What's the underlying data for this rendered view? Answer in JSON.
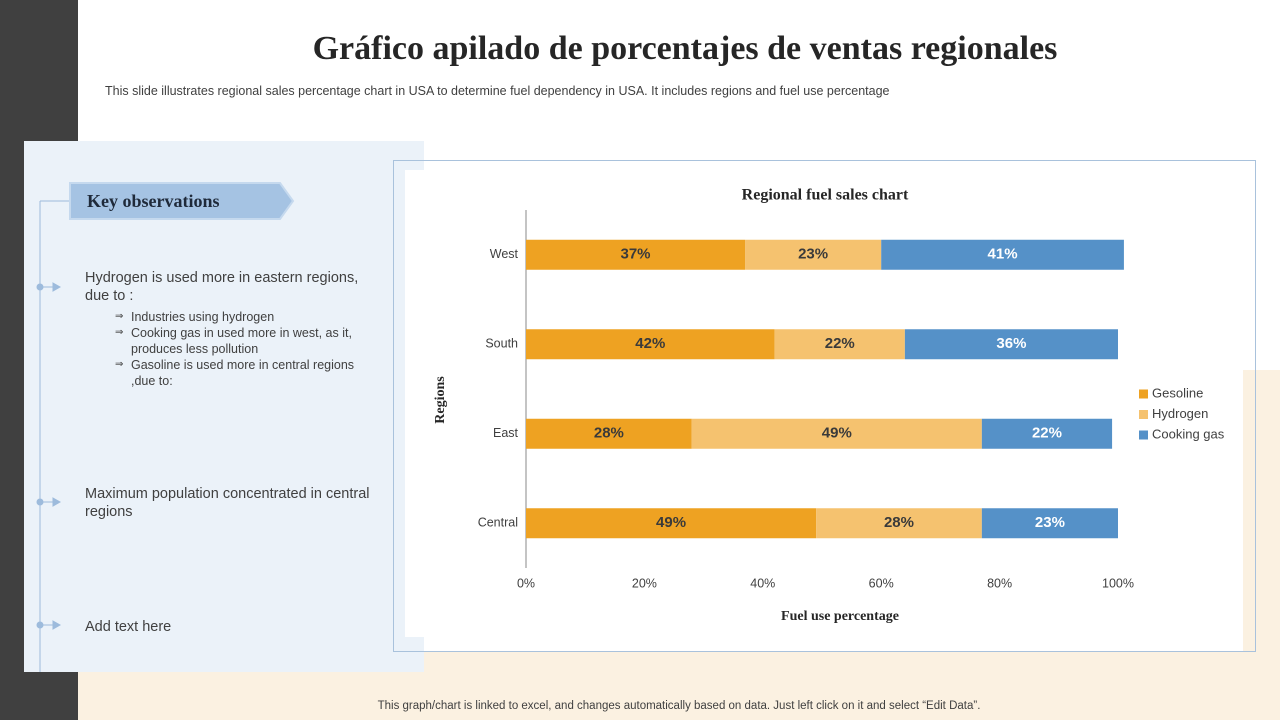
{
  "header": {
    "title": "Gráfico apilado de porcentajes de ventas regionales",
    "subtitle": "This slide illustrates regional sales percentage chart in USA to determine fuel dependency in USA. It includes regions and fuel use percentage"
  },
  "observations": {
    "heading": "Key observations",
    "items": [
      {
        "text": "Hydrogen is used more in eastern regions, due to :",
        "subitems": [
          "Industries using hydrogen",
          "Cooking gas in used more in west, as it, produces less pollution",
          "Gasoline is used more in central regions ,due to:"
        ]
      },
      {
        "text": "Maximum population concentrated in central regions"
      },
      {
        "text": "Add text here"
      }
    ]
  },
  "footer": "This graph/chart is linked to excel, and changes automatically based on data. Just left click on it and select “Edit Data”.",
  "chart_data": {
    "type": "bar",
    "orientation": "horizontal",
    "stacked": true,
    "title": "Regional fuel  sales chart",
    "xlabel": "Fuel use percentage",
    "ylabel": "Regions",
    "categories": [
      "West",
      "South",
      "East",
      "Central"
    ],
    "series": [
      {
        "name": "Gesoline",
        "color": "#eea222",
        "label_color": "#3a3a3a",
        "values": [
          37,
          42,
          28,
          49
        ],
        "value_labels": [
          "37%",
          "42%",
          "28%",
          "49%"
        ]
      },
      {
        "name": "Hydrogen",
        "color": "#f5c26f",
        "label_color": "#3a3a3a",
        "values": [
          23,
          22,
          49,
          28
        ],
        "value_labels": [
          "23%",
          "22%",
          "49%",
          "28%"
        ]
      },
      {
        "name": "Cooking gas",
        "color": "#5591c8",
        "label_color": "#ffffff",
        "values": [
          41,
          36,
          22,
          23
        ],
        "value_labels": [
          "41%",
          "36%",
          "22%",
          "23%"
        ]
      }
    ],
    "xlim": [
      0,
      100
    ],
    "xticks": [
      {
        "value": 0,
        "label": "0%"
      },
      {
        "value": 20,
        "label": "20%"
      },
      {
        "value": 40,
        "label": "40%"
      },
      {
        "value": 60,
        "label": "60%"
      },
      {
        "value": 80,
        "label": "80%"
      },
      {
        "value": 100,
        "label": "100%"
      }
    ],
    "legend": "right"
  }
}
